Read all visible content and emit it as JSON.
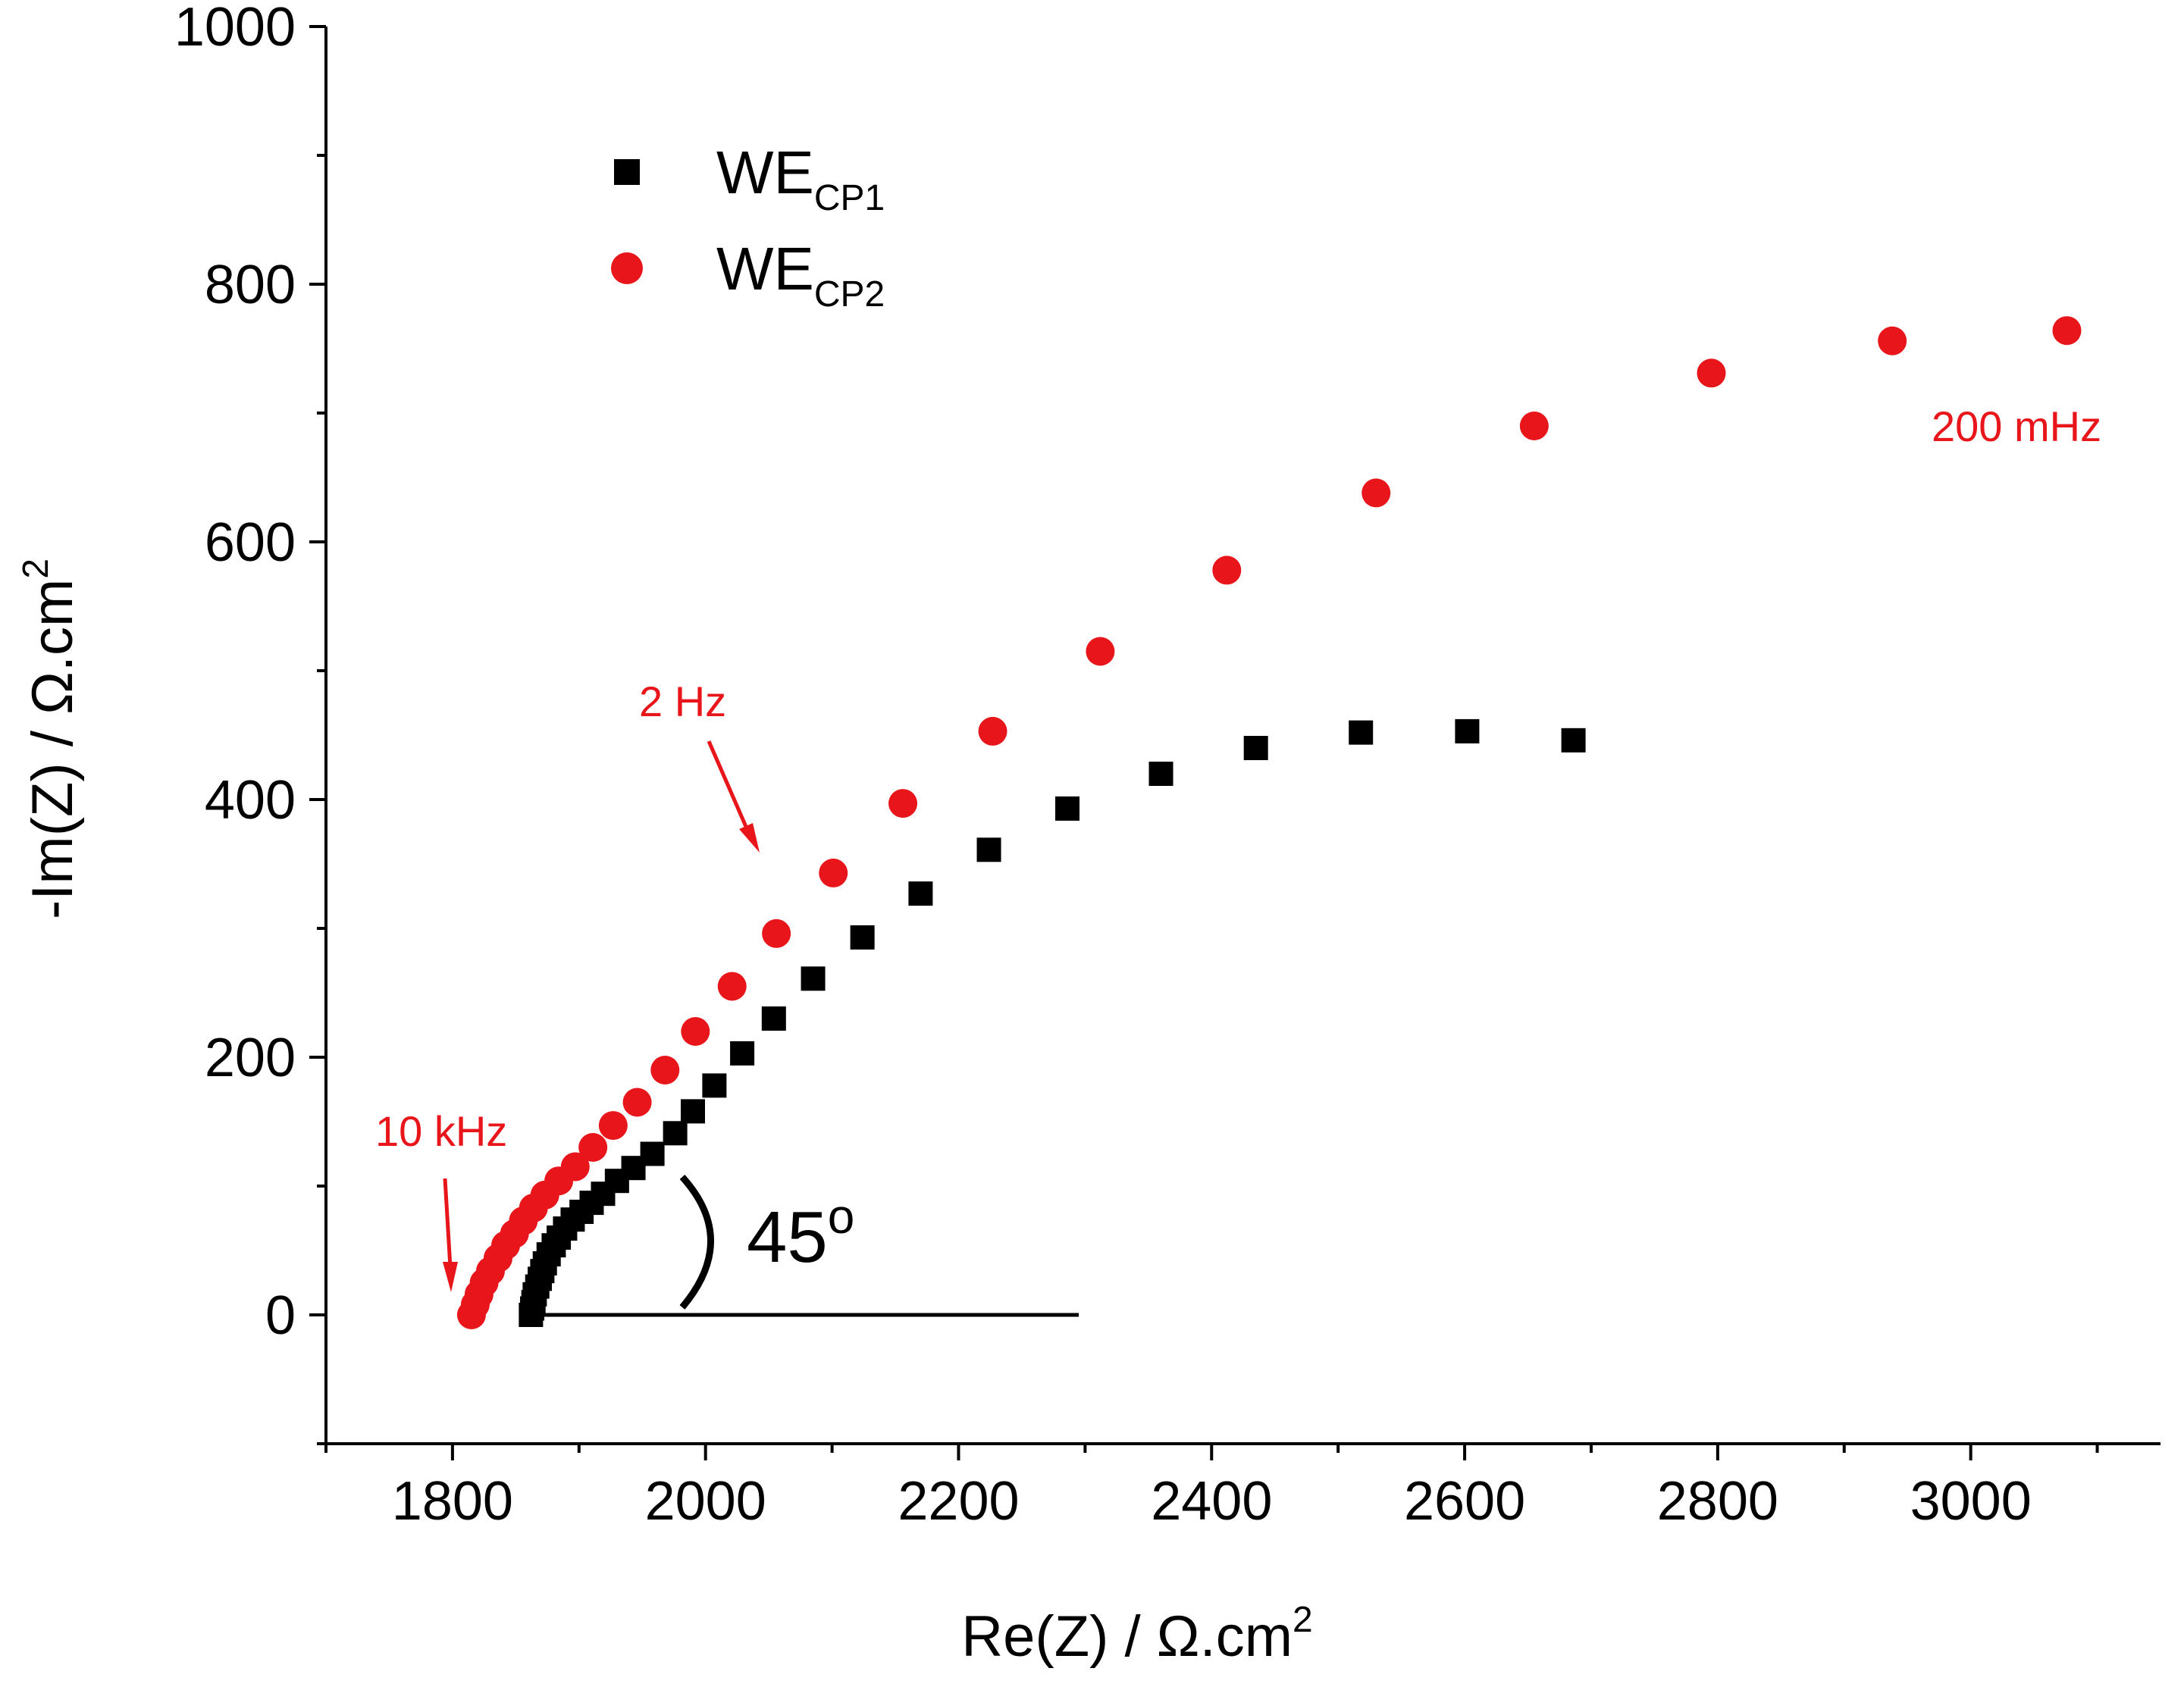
{
  "chart_data": {
    "type": "scatter",
    "xlabel": "Re(Z) / Ω.cm",
    "xlabel_sup": "2",
    "ylabel": "-Im(Z) / Ω.cm",
    "ylabel_sup": "2",
    "xlim": [
      1700,
      3150
    ],
    "ylim": [
      -100,
      1000
    ],
    "xticks": [
      1800,
      2000,
      2200,
      2400,
      2600,
      2800,
      3000
    ],
    "yticks": [
      0,
      200,
      400,
      600,
      800,
      1000
    ],
    "grid": false,
    "legend_position": "top-left",
    "series": [
      {
        "name": "WE",
        "subscript": "CP1",
        "marker": "square",
        "color": "#000000",
        "x": [
          1862,
          1863,
          1864,
          1865,
          1867,
          1869,
          1871,
          1873,
          1876,
          1880,
          1884,
          1889,
          1895,
          1902,
          1910,
          1919,
          1930,
          1943,
          1958,
          1976,
          1990,
          2007,
          2029,
          2054,
          2085,
          2124,
          2170,
          2224,
          2286,
          2360,
          2435,
          2518,
          2602,
          2686
        ],
        "y": [
          0,
          5,
          10,
          16,
          22,
          28,
          34,
          40,
          47,
          54,
          60,
          67,
          74,
          80,
          87,
          94,
          104,
          114,
          125,
          141,
          158,
          178,
          203,
          230,
          261,
          293,
          327,
          361,
          393,
          420,
          440,
          452,
          453,
          446
        ]
      },
      {
        "name": "WE",
        "subscript": "CP2",
        "marker": "circle",
        "color": "#e8151a",
        "x": [
          1815,
          1818,
          1821,
          1825,
          1830,
          1836,
          1842,
          1849,
          1856,
          1864,
          1873,
          1884,
          1897,
          1911,
          1927,
          1946,
          1968,
          1992,
          2021,
          2056,
          2101,
          2156,
          2227,
          2312,
          2412,
          2530,
          2655,
          2795,
          2938,
          3076
        ],
        "y": [
          0,
          8,
          16,
          25,
          34,
          44,
          54,
          63,
          73,
          83,
          93,
          104,
          115,
          130,
          147,
          165,
          190,
          220,
          255,
          296,
          343,
          397,
          453,
          515,
          578,
          638,
          690,
          731,
          756,
          764
        ]
      }
    ],
    "annotations": [
      {
        "text": "10 kHz",
        "color": "#e8151a",
        "x": 1808,
        "y": 5
      },
      {
        "text": "2 Hz",
        "color": "#e8151a",
        "x": 2045,
        "y": 362
      },
      {
        "text": "200 mHz",
        "color": "#e8151a"
      },
      {
        "text": "45",
        "suffix": "o",
        "color": "#000000"
      }
    ],
    "reference_line": {
      "x": [
        1862,
        2295
      ],
      "y": [
        0,
        0
      ]
    }
  }
}
